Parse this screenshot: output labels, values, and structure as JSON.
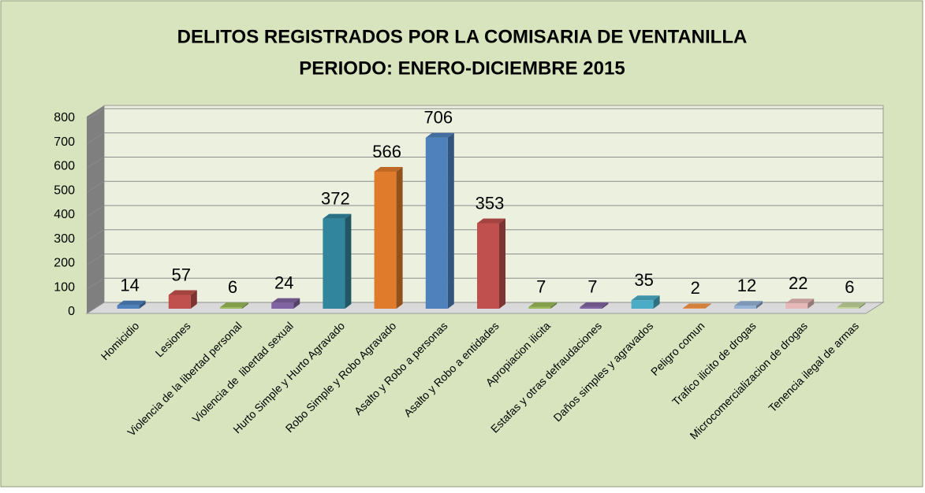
{
  "chart_data": {
    "type": "bar3d",
    "title": "DELITOS REGISTRADOS POR LA COMISARIA DE VENTANILLA",
    "subtitle": "PERIODO: ENERO-DICIEMBRE 2015",
    "categories": [
      "Homicidio",
      "Lesiones",
      "Violencia de la libertad personal",
      "Violencia de  libertad sexual",
      "Hurto Simple y Hurto Agravado",
      "Robo Simple y Robo Agravado",
      "Asalto y Robo a personas",
      "Asalto y Robo a entidades",
      "Apropiacion ilicita",
      "Estafas y otras defraudaciones",
      "Daños simples y agravados",
      "Peligro comun",
      "Trafico ilicito de drogas",
      "Microcomercializacion de drogas",
      "Tenencia ilegal de armas"
    ],
    "values": [
      14,
      57,
      6,
      24,
      372,
      566,
      706,
      353,
      7,
      7,
      35,
      2,
      12,
      22,
      6
    ],
    "colors": [
      "#4f81bd",
      "#c0504d",
      "#9bbb59",
      "#8064a2",
      "#31859c",
      "#e07b2c",
      "#4f81bd",
      "#c0504d",
      "#9bbb59",
      "#8064a2",
      "#4bacc6",
      "#f79646",
      "#95b3d7",
      "#e6b9b8",
      "#c4d79b"
    ],
    "ylim": [
      0,
      800
    ],
    "yticks": [
      0,
      100,
      200,
      300,
      400,
      500,
      600,
      700,
      800
    ],
    "grid": true
  }
}
